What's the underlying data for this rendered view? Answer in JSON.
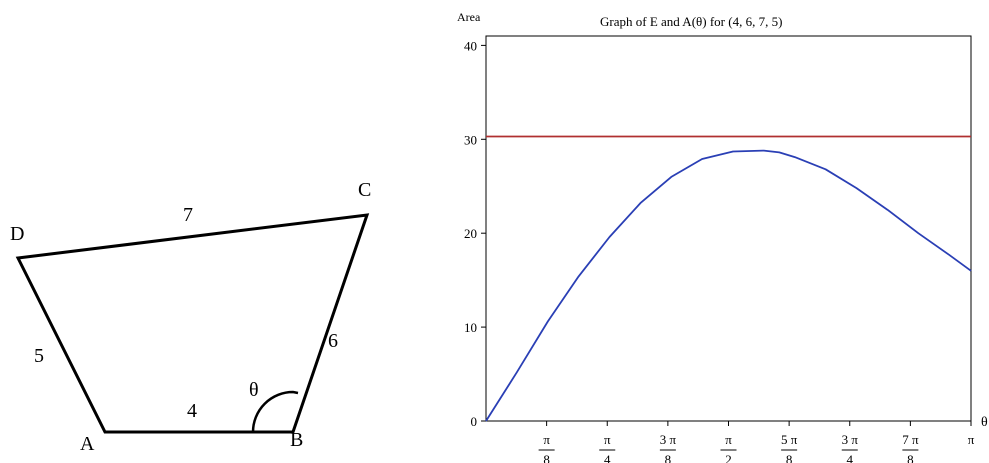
{
  "quadrilateral": {
    "vertices": {
      "A": "A",
      "B": "B",
      "C": "C",
      "D": "D"
    },
    "sides": {
      "AB": "4",
      "BC": "6",
      "CD": "7",
      "DA": "5"
    },
    "angle_label": "θ"
  },
  "chart_data": {
    "type": "line",
    "title": "Graph of E and A(θ) for (4, 6, 7, 5)",
    "ylabel": "Area",
    "xlabel": "θ",
    "xlim": [
      0,
      3.14159
    ],
    "ylim": [
      0,
      41
    ],
    "y_ticks": [
      0,
      10,
      20,
      30,
      40
    ],
    "x_ticks": [
      {
        "value": 0.3927,
        "num": "π",
        "den": "8"
      },
      {
        "value": 0.7854,
        "num": "π",
        "den": "4"
      },
      {
        "value": 1.1781,
        "num": "3 π",
        "den": "8"
      },
      {
        "value": 1.5708,
        "num": "π",
        "den": "2"
      },
      {
        "value": 1.9635,
        "num": "5 π",
        "den": "8"
      },
      {
        "value": 2.3562,
        "num": "3 π",
        "den": "4"
      },
      {
        "value": 2.7489,
        "num": "7 π",
        "den": "8"
      },
      {
        "value": 3.14159,
        "num": "π",
        "den": ""
      }
    ],
    "series": [
      {
        "name": "",
        "color": "#b03030",
        "x": [
          0,
          3.14159
        ],
        "y": [
          30.3,
          30.3
        ]
      },
      {
        "name": "",
        "color": "#2a3fb5",
        "x": [
          0,
          0.2,
          0.4,
          0.6,
          0.8,
          1.0,
          1.2,
          1.4,
          1.6,
          1.8,
          1.9,
          2.0,
          2.2,
          2.4,
          2.6,
          2.8,
          3.0,
          3.14159
        ],
        "y": [
          0,
          5.2,
          10.6,
          15.4,
          19.6,
          23.2,
          26.0,
          27.9,
          28.7,
          28.8,
          28.6,
          28.1,
          26.8,
          24.8,
          22.5,
          20.0,
          17.7,
          16.0
        ]
      }
    ]
  }
}
